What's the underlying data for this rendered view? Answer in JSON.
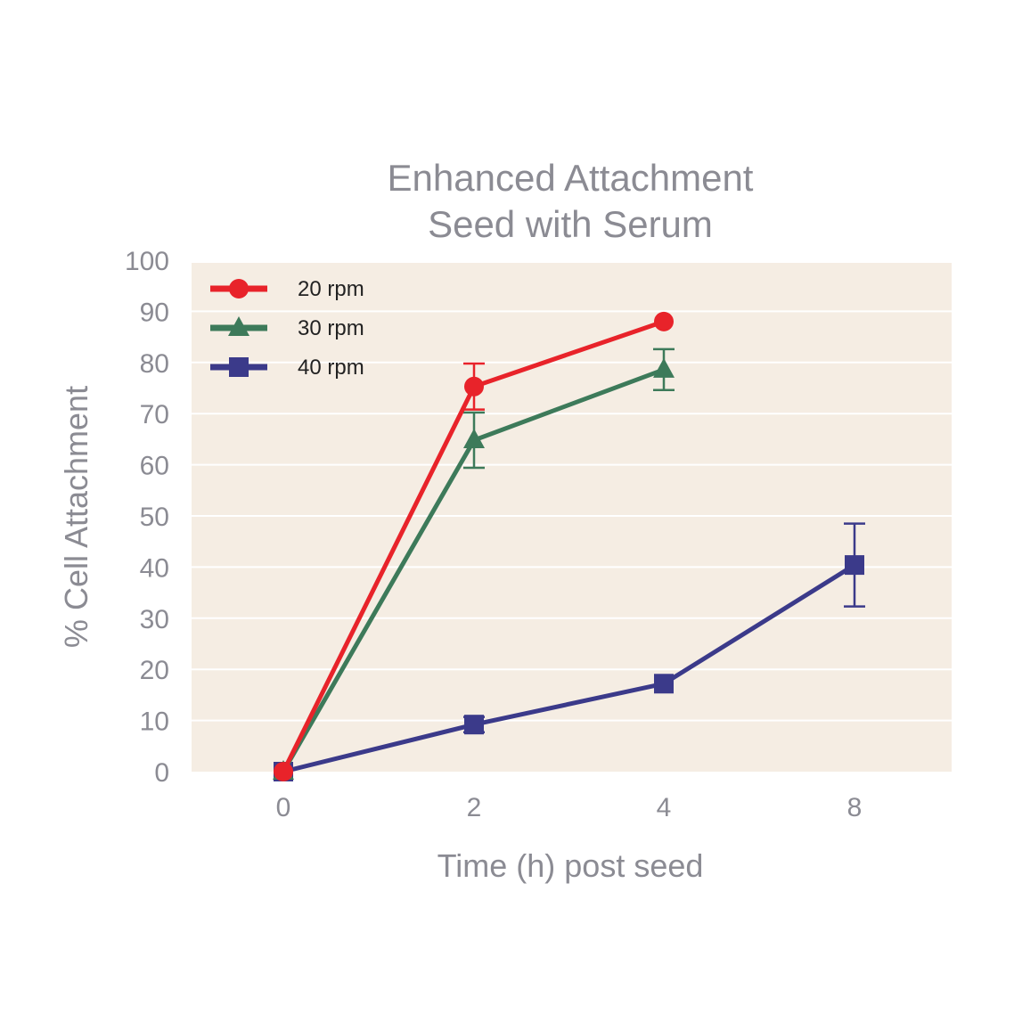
{
  "chart_data": {
    "type": "line",
    "title": [
      "Enhanced Attachment",
      "Seed with Serum"
    ],
    "xlabel": "Time (h) post seed",
    "ylabel": "% Cell Attachment",
    "categories": [
      "0",
      "2",
      "4",
      "8"
    ],
    "ylim": [
      0,
      100
    ],
    "yticks": [
      "0",
      "10",
      "20",
      "30",
      "40",
      "50",
      "60",
      "70",
      "80",
      "90",
      "100"
    ],
    "grid": true,
    "legend_position": "top-left",
    "background_color": "#f5ede3",
    "series": [
      {
        "name": "20 rpm",
        "color": "#e8232a",
        "marker": "circle",
        "values": [
          0,
          75.3,
          88,
          null
        ],
        "errors": [
          0,
          4.5,
          0,
          null
        ]
      },
      {
        "name": "30 rpm",
        "color": "#3d7a5a",
        "marker": "triangle",
        "values": [
          0,
          64.8,
          78.6,
          null
        ],
        "errors": [
          0,
          5.4,
          4,
          null
        ]
      },
      {
        "name": "40 rpm",
        "color": "#3b3a8a",
        "marker": "square",
        "values": [
          0,
          9.2,
          17.2,
          40.4
        ],
        "errors": [
          0,
          1.5,
          0,
          8.1
        ]
      }
    ]
  }
}
